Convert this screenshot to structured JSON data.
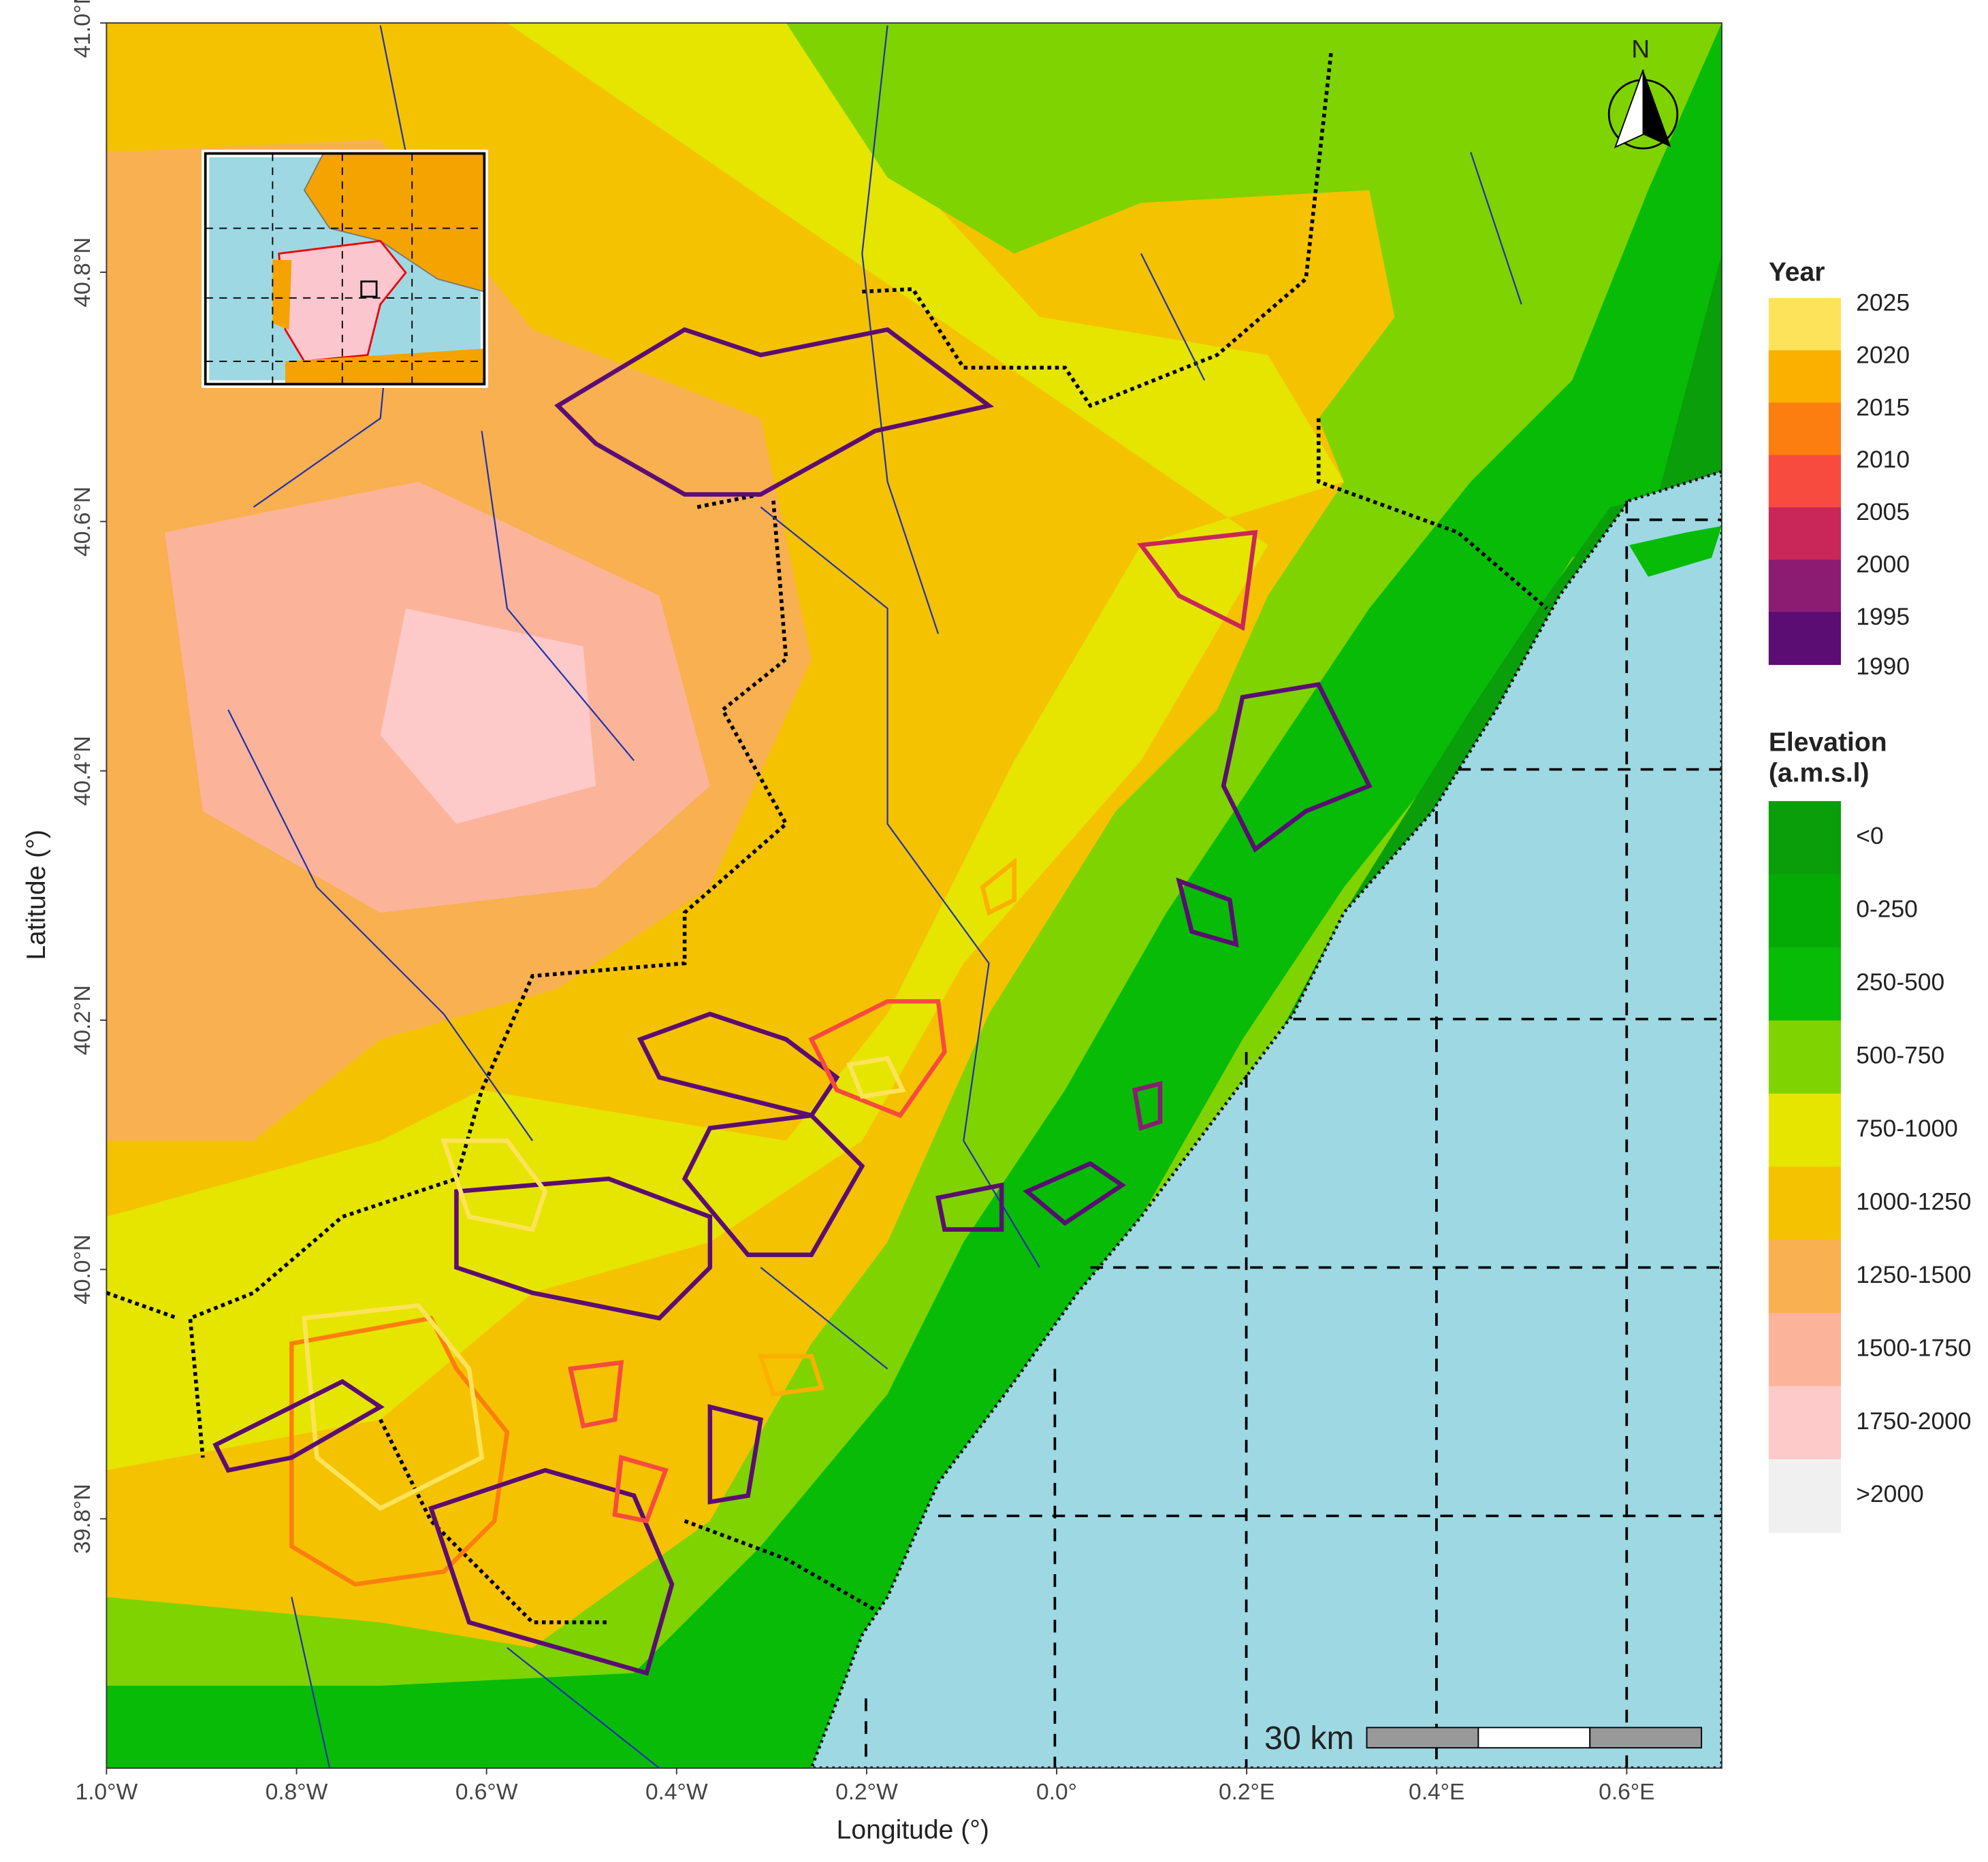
{
  "map": {
    "xlabel": "Longitude (°)",
    "ylabel": "Latitude (°)",
    "xlim": [
      -1.0,
      0.7
    ],
    "ylim": [
      39.6,
      41.0
    ],
    "xticks": [
      {
        "value": -1.0,
        "label": "1.0°W"
      },
      {
        "value": -0.8,
        "label": "0.8°W"
      },
      {
        "value": -0.6,
        "label": "0.6°W"
      },
      {
        "value": -0.4,
        "label": "0.4°W"
      },
      {
        "value": -0.2,
        "label": "0.2°W"
      },
      {
        "value": 0.0,
        "label": "0.0°"
      },
      {
        "value": 0.2,
        "label": "0.2°E"
      },
      {
        "value": 0.4,
        "label": "0.4°E"
      },
      {
        "value": 0.6,
        "label": "0.6°E"
      }
    ],
    "yticks": [
      {
        "value": 39.8,
        "label": "39.8°N"
      },
      {
        "value": 40.0,
        "label": "40.0°N"
      },
      {
        "value": 40.2,
        "label": "40.2°N"
      },
      {
        "value": 40.4,
        "label": "40.4°N"
      },
      {
        "value": 40.6,
        "label": "40.6°N"
      },
      {
        "value": 40.8,
        "label": "40.8°N"
      },
      {
        "value": 41.0,
        "label": "41.0°N"
      }
    ],
    "north": "N",
    "scale_bar": "30 km",
    "legend_year": {
      "title": "Year",
      "items": [
        {
          "label": "2025",
          "color": "#fde35a"
        },
        {
          "label": "2020",
          "color": "#fbb000"
        },
        {
          "label": "2015",
          "color": "#fc7e10"
        },
        {
          "label": "2010",
          "color": "#f74b3f"
        },
        {
          "label": "2005",
          "color": "#c9275a"
        },
        {
          "label": "2000",
          "color": "#8c1c72"
        },
        {
          "label": "1995",
          "color": "#5b0d73"
        }
      ],
      "end_label": "1990"
    },
    "legend_elevation": {
      "title_lines": [
        "Elevation",
        "(a.m.s.l)"
      ],
      "items": [
        {
          "label": "<0",
          "color": "#0a9e0a"
        },
        {
          "label": "0-250",
          "color": "#05ab05"
        },
        {
          "label": "250-500",
          "color": "#07bb07"
        },
        {
          "label": "500-750",
          "color": "#7fd300"
        },
        {
          "label": "750-1000",
          "color": "#e5e500"
        },
        {
          "label": "1000-1250",
          "color": "#f5c200"
        },
        {
          "label": "1250-1500",
          "color": "#f8b050"
        },
        {
          "label": "1500-1750",
          "color": "#fbb49a"
        },
        {
          "label": "1750-2000",
          "color": "#fdc9c9"
        },
        {
          "label": ">2000",
          "color": "#f0f0f0"
        }
      ]
    }
  }
}
